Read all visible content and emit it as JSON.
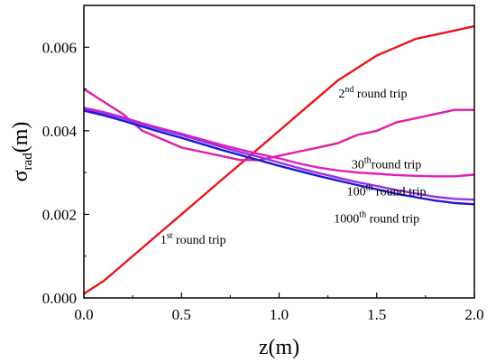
{
  "chart_data": {
    "type": "line",
    "xlabel": "z(m)",
    "ylabel": {
      "base": "σ",
      "sub": "rad",
      "rest": "(m)"
    },
    "xlim": [
      0.0,
      2.0
    ],
    "ylim": [
      0.0,
      0.007
    ],
    "grid": false,
    "legend": "none",
    "x_ticks": [
      {
        "value": 0.0,
        "label": "0.0"
      },
      {
        "value": 0.5,
        "label": "0.5"
      },
      {
        "value": 1.0,
        "label": "1.0"
      },
      {
        "value": 1.5,
        "label": "1.5"
      },
      {
        "value": 2.0,
        "label": "2.0"
      }
    ],
    "y_ticks": [
      {
        "value": 0.0,
        "label": "0.000"
      },
      {
        "value": 0.002,
        "label": "0.002"
      },
      {
        "value": 0.004,
        "label": "0.004"
      },
      {
        "value": 0.006,
        "label": "0.006"
      }
    ],
    "series": [
      {
        "key": "trip1",
        "color": "#e8161c",
        "x": [
          0.0,
          0.1,
          0.2,
          0.3,
          0.4,
          0.5,
          0.6,
          0.7,
          0.8,
          0.9,
          1.0,
          1.1,
          1.2,
          1.3,
          1.4,
          1.5,
          1.6,
          1.7,
          1.8,
          1.9,
          2.0
        ],
        "y": [
          0.0001,
          0.0004,
          0.0008,
          0.0012,
          0.0016,
          0.002,
          0.0024,
          0.0028,
          0.0032,
          0.0036,
          0.004,
          0.0044,
          0.0048,
          0.0052,
          0.0055,
          0.0058,
          0.006,
          0.0062,
          0.0063,
          0.0064,
          0.0065
        ]
      },
      {
        "key": "trip2",
        "color": "#e01da6",
        "x": [
          0.0,
          0.1,
          0.2,
          0.3,
          0.4,
          0.5,
          0.6,
          0.7,
          0.8,
          0.9,
          1.0,
          1.1,
          1.2,
          1.3,
          1.4,
          1.5,
          1.6,
          1.7,
          1.8,
          1.9,
          2.0
        ],
        "y": [
          0.005,
          0.0047,
          0.0044,
          0.004,
          0.0038,
          0.0036,
          0.0035,
          0.0034,
          0.0033,
          0.0033,
          0.0034,
          0.0035,
          0.0036,
          0.0037,
          0.0039,
          0.004,
          0.0042,
          0.0043,
          0.0044,
          0.0045,
          0.0045
        ]
      },
      {
        "key": "trip30",
        "color": "#e01dbf",
        "x": [
          0.0,
          0.1,
          0.2,
          0.3,
          0.4,
          0.5,
          0.6,
          0.7,
          0.8,
          0.9,
          1.0,
          1.1,
          1.2,
          1.3,
          1.4,
          1.5,
          1.6,
          1.7,
          1.8,
          1.9,
          2.0
        ],
        "y": [
          0.00455,
          0.00445,
          0.00432,
          0.00418,
          0.00405,
          0.00393,
          0.0038,
          0.00367,
          0.00355,
          0.00344,
          0.00334,
          0.00322,
          0.00312,
          0.00305,
          0.003,
          0.00297,
          0.00294,
          0.00292,
          0.00291,
          0.00291,
          0.00295
        ]
      },
      {
        "key": "trip100",
        "color": "#9b2fe3",
        "x": [
          0.0,
          0.1,
          0.2,
          0.3,
          0.4,
          0.5,
          0.6,
          0.7,
          0.8,
          0.9,
          1.0,
          1.1,
          1.2,
          1.3,
          1.4,
          1.5,
          1.6,
          1.7,
          1.8,
          1.9,
          2.0
        ],
        "y": [
          0.00452,
          0.00442,
          0.0043,
          0.00416,
          0.00402,
          0.0039,
          0.00376,
          0.00362,
          0.00349,
          0.00337,
          0.00324,
          0.00311,
          0.00299,
          0.00288,
          0.00277,
          0.00268,
          0.00258,
          0.0025,
          0.00242,
          0.00237,
          0.00235
        ]
      },
      {
        "key": "trip1000",
        "color": "#1a1ad6",
        "x": [
          0.0,
          0.1,
          0.2,
          0.3,
          0.4,
          0.5,
          0.6,
          0.7,
          0.8,
          0.9,
          1.0,
          1.1,
          1.2,
          1.3,
          1.4,
          1.5,
          1.6,
          1.7,
          1.8,
          1.9,
          2.0
        ],
        "y": [
          0.00448,
          0.00437,
          0.00424,
          0.0041,
          0.00396,
          0.00383,
          0.00369,
          0.00355,
          0.00342,
          0.00329,
          0.00316,
          0.00304,
          0.00292,
          0.00281,
          0.0027,
          0.0026,
          0.00249,
          0.00241,
          0.00233,
          0.00227,
          0.00224
        ]
      }
    ],
    "annotations": [
      {
        "key": "ann-trip2",
        "num": "2",
        "sup": "nd",
        "text": " round trip",
        "x": 1.48,
        "y": 0.0048
      },
      {
        "key": "ann-trip30",
        "num": "30",
        "sup": "th",
        "text": "round trip",
        "x": 1.55,
        "y": 0.0031
      },
      {
        "key": "ann-trip100",
        "num": "100",
        "sup": "th",
        "text": " round trip",
        "x": 1.55,
        "y": 0.00245
      },
      {
        "key": "ann-trip1000",
        "num": "1000",
        "sup": "th",
        "text": " round trip",
        "x": 1.5,
        "y": 0.0018
      },
      {
        "key": "ann-trip1",
        "num": "1",
        "sup": "st",
        "text": " round trip",
        "x": 0.56,
        "y": 0.0013
      }
    ]
  }
}
